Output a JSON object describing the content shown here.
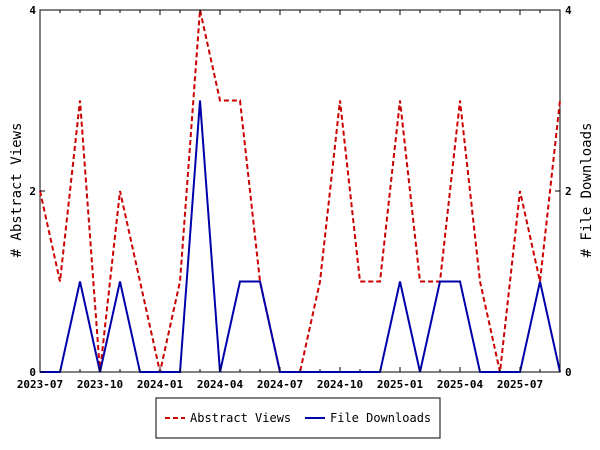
{
  "chart_data": {
    "type": "line",
    "x": [
      "2023-07",
      "2023-08",
      "2023-09",
      "2023-10",
      "2023-11",
      "2023-12",
      "2024-01",
      "2024-02",
      "2024-03",
      "2024-04",
      "2024-05",
      "2024-06",
      "2024-07",
      "2024-08",
      "2024-09",
      "2024-10",
      "2024-11",
      "2024-12",
      "2025-01",
      "2025-02",
      "2025-03",
      "2025-04",
      "2025-05",
      "2025-06",
      "2025-07",
      "2025-08",
      "2025-09"
    ],
    "x_tick_labels": [
      "2023-07",
      "2023-10",
      "2024-01",
      "2024-04",
      "2024-07",
      "2024-10",
      "2025-01",
      "2025-04",
      "2025-07"
    ],
    "series": [
      {
        "name": "Abstract Views",
        "axis": "left",
        "color": "#cc0000",
        "style": "dashed",
        "values": [
          2,
          1,
          3,
          0,
          2,
          1,
          0,
          1,
          4,
          3,
          3,
          1,
          0,
          0,
          1,
          3,
          1,
          1,
          3,
          1,
          1,
          3,
          1,
          0,
          2,
          1,
          3
        ]
      },
      {
        "name": "File Downloads",
        "axis": "right",
        "color": "#0000aa",
        "style": "solid",
        "values": [
          0,
          0,
          1,
          0,
          1,
          0,
          0,
          0,
          3,
          0,
          1,
          1,
          0,
          0,
          0,
          0,
          0,
          0,
          1,
          0,
          1,
          1,
          0,
          0,
          0,
          1,
          0
        ]
      }
    ],
    "ylabel_left": "# Abstract Views",
    "ylabel_right": "# File Downloads",
    "ylim_left": [
      0,
      4
    ],
    "ylim_right": [
      0,
      4
    ],
    "yticks_left": [
      "0",
      "2",
      "4"
    ],
    "yticks_right": [
      "0",
      "2",
      "4"
    ],
    "grid": false,
    "legend_position": "bottom-center"
  }
}
